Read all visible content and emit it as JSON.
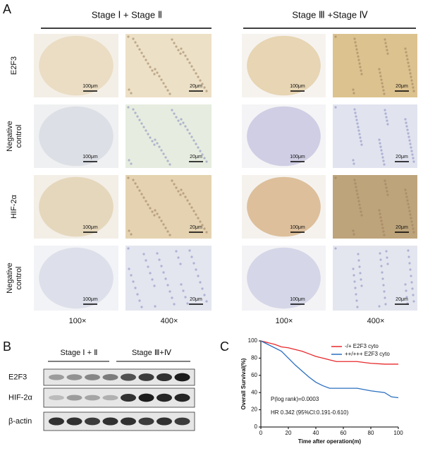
{
  "panel_a": {
    "label": "A",
    "headers": [
      "Stage Ⅰ + Stage Ⅱ",
      "Stage Ⅲ +Stage Ⅳ"
    ],
    "row_labels": [
      "E2F3",
      "Negative control",
      "HIF-2α",
      "Negative control"
    ],
    "magnifications": [
      "100×",
      "400×",
      "100×",
      "400×"
    ],
    "scale_bars": [
      "100μm",
      "20μm"
    ]
  },
  "panel_b": {
    "label": "B",
    "groups": [
      "Stage Ⅰ + Ⅱ",
      "Stage Ⅲ+Ⅳ"
    ],
    "rows": [
      "E2F3",
      "HIF-2α",
      "β-actin"
    ]
  },
  "panel_c": {
    "label": "C",
    "chart_data": {
      "type": "line",
      "x_label": "Time after operation(m)",
      "y_label": "Overall Survival(%)",
      "annotations": [
        "P(log rank)=0.0003",
        "HR 0.342 (95%CI:0.191-0.610)"
      ],
      "xlim": [
        0,
        100
      ],
      "ylim": [
        0,
        100
      ],
      "xticks": [
        0,
        20,
        40,
        60,
        80,
        100
      ],
      "yticks": [
        0,
        20,
        40,
        60,
        80,
        100
      ],
      "series": [
        {
          "name": "-/+ E2F3 cyto",
          "color": "#e8282b",
          "x": [
            0,
            5,
            10,
            15,
            20,
            25,
            30,
            35,
            40,
            45,
            50,
            55,
            60,
            70,
            80,
            90,
            100
          ],
          "values": [
            100,
            98,
            96,
            93,
            92,
            90,
            88,
            85,
            82,
            80,
            78,
            76,
            76,
            76,
            74,
            73,
            73
          ]
        },
        {
          "name": "++/+++ E2F3 cyto",
          "color": "#2a6fbf",
          "x": [
            0,
            5,
            10,
            15,
            20,
            25,
            30,
            35,
            40,
            45,
            50,
            60,
            70,
            80,
            90,
            95,
            100
          ],
          "values": [
            100,
            96,
            92,
            88,
            80,
            72,
            65,
            58,
            52,
            48,
            45,
            45,
            45,
            42,
            40,
            35,
            34
          ]
        }
      ]
    }
  }
}
